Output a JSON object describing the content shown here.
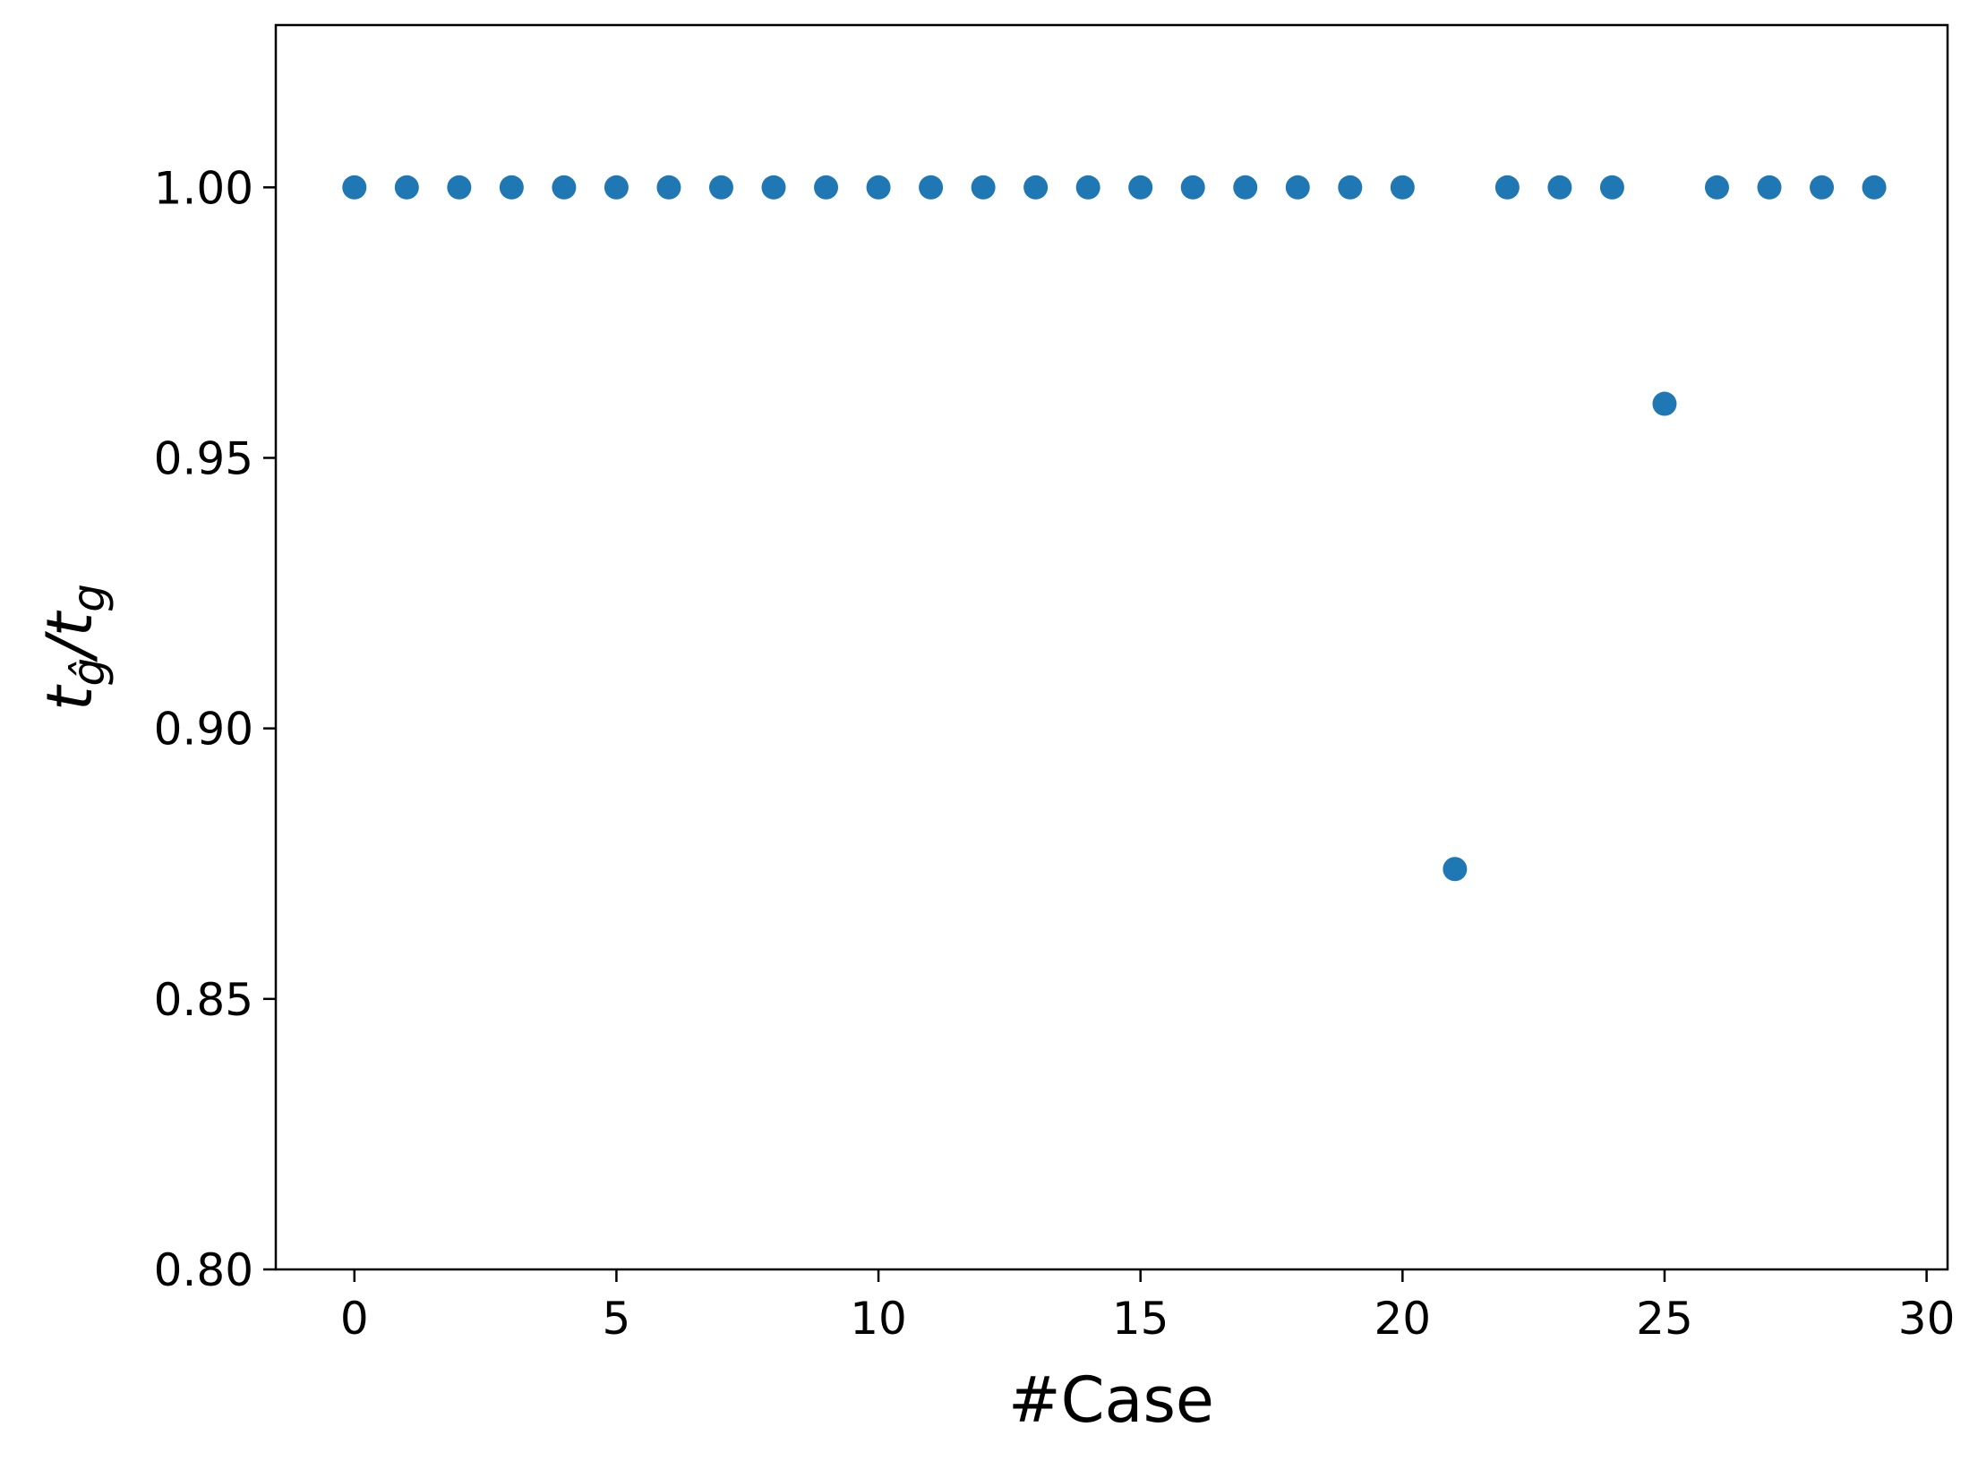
{
  "chart_data": {
    "type": "scatter",
    "title": "",
    "xlabel": "#Case",
    "ylabel": {
      "main": "t",
      "sub1": "ĝ",
      "slash": "/",
      "main2": "t",
      "sub2": "g"
    },
    "xlim": [
      -1.5,
      30.4
    ],
    "ylim": [
      0.8,
      1.03
    ],
    "xticks": [
      0,
      5,
      10,
      15,
      20,
      25,
      30
    ],
    "xtick_labels": [
      "0",
      "5",
      "10",
      "15",
      "20",
      "25",
      "30"
    ],
    "yticks": [
      0.8,
      0.85,
      0.9,
      0.95,
      1.0
    ],
    "ytick_labels": [
      "0.80",
      "0.85",
      "0.90",
      "0.95",
      "1.00"
    ],
    "grid": false,
    "color": "#1f77b4",
    "series": [
      {
        "x": [
          0,
          1,
          2,
          3,
          4,
          5,
          6,
          7,
          8,
          9,
          10,
          11,
          12,
          13,
          14,
          15,
          16,
          17,
          18,
          19,
          20,
          21,
          22,
          23,
          24,
          25,
          26,
          27,
          28,
          29
        ],
        "y": [
          1.0,
          1.0,
          1.0,
          1.0,
          1.0,
          1.0,
          1.0,
          1.0,
          1.0,
          1.0,
          1.0,
          1.0,
          1.0,
          1.0,
          1.0,
          1.0,
          1.0,
          1.0,
          1.0,
          1.0,
          1.0,
          0.874,
          1.0,
          1.0,
          1.0,
          0.96,
          1.0,
          1.0,
          1.0,
          1.0
        ]
      }
    ]
  }
}
